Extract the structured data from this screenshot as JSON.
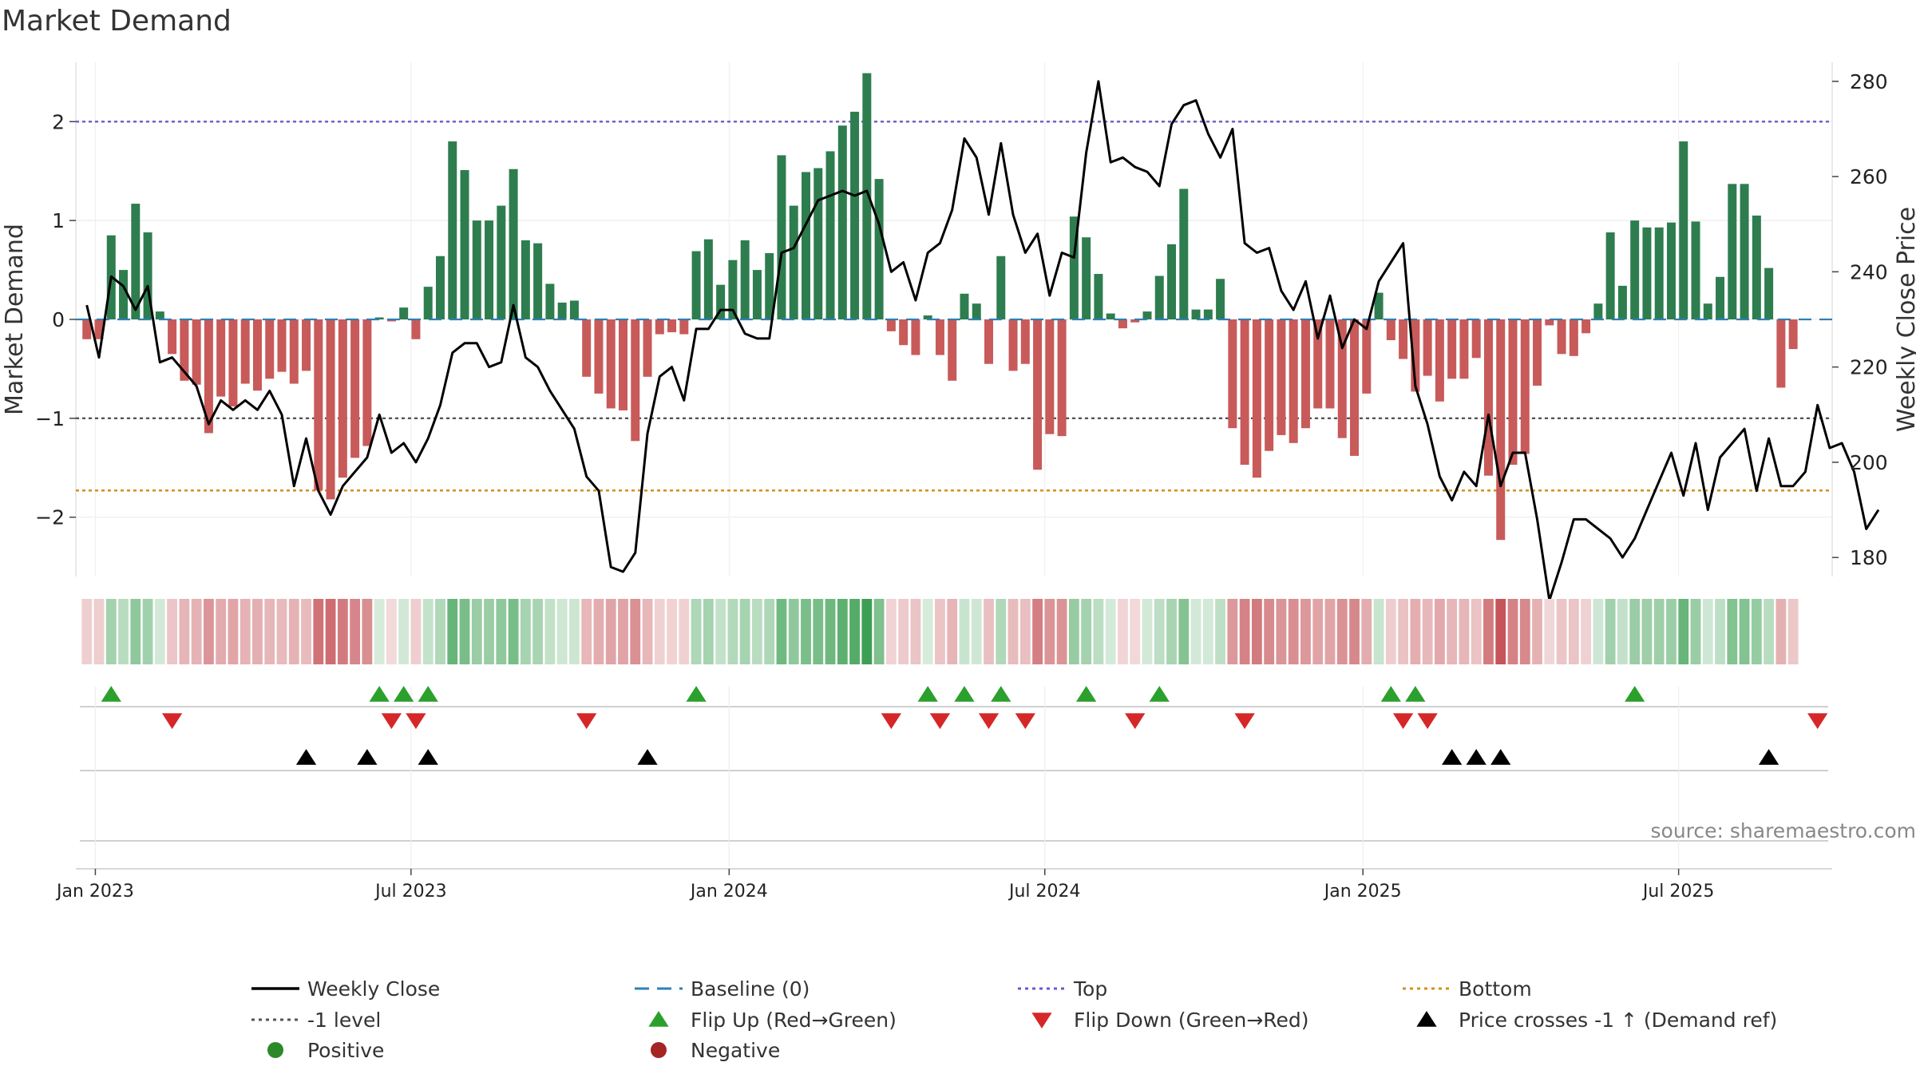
{
  "chart_data": {
    "type": "bar",
    "title": "Market Demand",
    "ylabel": "Market Demand",
    "y2label": "Weekly Close Price",
    "ylim": [
      -2.6,
      2.6
    ],
    "y2lim": [
      176,
      284
    ],
    "yticks": [
      -2,
      -1,
      0,
      1,
      2
    ],
    "y2ticks": [
      180,
      200,
      220,
      240,
      260,
      280
    ],
    "ytick_labels": [
      "−2",
      "−1",
      "0",
      "1",
      "2"
    ],
    "x_labels": [
      {
        "label": "Jan 2023",
        "week": 0.7
      },
      {
        "label": "Jul 2023",
        "week": 26.6
      },
      {
        "label": "Jan 2024",
        "week": 52.7
      },
      {
        "label": "Jul 2024",
        "week": 78.6
      },
      {
        "label": "Jan 2025",
        "week": 104.7
      },
      {
        "label": "Jul 2025",
        "week": 130.6
      }
    ],
    "week_range": [
      -0.9,
      143.2
    ],
    "ref_lines": {
      "top": 2.0,
      "minus_one": -1.0,
      "bottom": -1.73,
      "baseline": 0
    },
    "demand": [
      -0.2,
      -0.2,
      0.85,
      0.5,
      1.17,
      0.88,
      0.08,
      -0.35,
      -0.62,
      -0.66,
      -1.15,
      -0.78,
      -0.88,
      -0.65,
      -0.72,
      -0.6,
      -0.53,
      -0.65,
      -0.52,
      -1.73,
      -1.82,
      -1.6,
      -1.4,
      -1.28,
      0.02,
      -0.02,
      0.12,
      -0.2,
      0.33,
      0.64,
      1.8,
      1.51,
      1.0,
      1.0,
      1.15,
      1.52,
      0.8,
      0.77,
      0.36,
      0.17,
      0.19,
      -0.58,
      -0.75,
      -0.9,
      -0.92,
      -1.23,
      -0.58,
      -0.15,
      -0.13,
      -0.15,
      0.69,
      0.81,
      0.35,
      0.6,
      0.8,
      0.5,
      0.67,
      1.66,
      1.15,
      1.49,
      1.53,
      1.7,
      1.96,
      2.1,
      2.49,
      1.42,
      -0.12,
      -0.26,
      -0.36,
      0.04,
      -0.36,
      -0.62,
      0.26,
      0.16,
      -0.45,
      0.64,
      -0.52,
      -0.45,
      -1.52,
      -1.16,
      -1.18,
      1.04,
      0.83,
      0.46,
      0.06,
      -0.09,
      -0.03,
      0.08,
      0.44,
      0.76,
      1.32,
      0.1,
      0.1,
      0.41,
      -1.1,
      -1.47,
      -1.6,
      -1.33,
      -1.17,
      -1.25,
      -1.1,
      -0.9,
      -0.9,
      -1.2,
      -1.38,
      -0.75,
      0.27,
      -0.21,
      -0.4,
      -0.73,
      -0.57,
      -0.83,
      -0.6,
      -0.6,
      -0.39,
      -1.58,
      -2.23,
      -1.47,
      -1.36,
      -0.67,
      -0.06,
      -0.35,
      -0.37,
      -0.14,
      0.16,
      0.88,
      0.34,
      1.0,
      0.93,
      0.93,
      0.98,
      1.8,
      0.99,
      0.16,
      0.43,
      1.37,
      1.37,
      1.05,
      0.52,
      -0.69,
      -0.3
    ],
    "close": [
      233,
      222,
      239,
      237,
      232,
      237,
      221,
      222,
      219,
      216,
      208,
      213,
      211,
      213,
      211,
      215,
      210,
      195,
      205,
      194,
      189,
      195,
      198,
      201,
      210,
      202,
      204,
      200,
      205,
      212,
      223,
      225,
      225,
      220,
      221,
      233,
      222,
      220,
      215,
      211,
      207,
      197,
      194,
      178,
      177,
      181,
      206,
      218,
      220,
      213,
      228,
      228,
      232,
      232,
      227,
      226,
      226,
      244,
      245,
      250,
      255,
      256,
      257,
      256,
      257,
      250,
      240,
      242,
      234,
      244,
      246,
      253,
      268,
      264,
      252,
      267,
      252,
      244,
      248,
      235,
      244,
      243,
      265,
      280,
      263,
      264,
      262,
      261,
      258,
      271,
      275,
      276,
      269,
      264,
      270,
      246,
      244,
      245,
      236,
      232,
      238,
      226,
      235,
      224,
      230,
      228,
      238,
      242,
      246,
      216,
      208,
      197,
      192,
      198,
      195,
      210,
      195,
      202,
      202,
      188,
      171,
      179,
      188,
      188,
      186,
      184,
      180,
      184,
      190,
      196,
      202,
      193,
      204,
      190,
      201,
      204,
      207,
      194,
      205,
      195,
      195,
      198,
      212,
      203,
      204,
      198,
      186,
      190
    ],
    "flip_up": [
      2,
      24,
      26,
      28,
      50,
      69,
      72,
      75,
      82,
      88,
      107,
      109,
      127
    ],
    "flip_down": [
      7,
      25,
      27,
      41,
      66,
      70,
      74,
      77,
      86,
      95,
      108,
      110,
      142
    ],
    "price_cross": [
      18,
      23,
      28,
      46,
      112,
      114,
      116,
      138
    ],
    "legend": [
      {
        "label": "Weekly Close",
        "type": "line-solid",
        "color": "#000000"
      },
      {
        "label": "Baseline (0)",
        "type": "line-dashed",
        "color": "#2f7fb8"
      },
      {
        "label": "Top",
        "type": "line-dotted",
        "color": "#6a5acd"
      },
      {
        "label": "Bottom",
        "type": "line-dotted",
        "color": "#d4901a"
      },
      {
        "label": "-1 level",
        "type": "line-dotted",
        "color": "#555555"
      },
      {
        "label": "Flip Up (Red→Green)",
        "type": "tri-up",
        "color": "#2ca02c"
      },
      {
        "label": "Flip Down (Green→Red)",
        "type": "tri-down",
        "color": "#d62728"
      },
      {
        "label": "Price crosses -1 ↑ (Demand ref)",
        "type": "tri-up",
        "color": "#000000"
      },
      {
        "label": "Positive",
        "type": "dot",
        "color": "#2a8a2a"
      },
      {
        "label": "Negative",
        "type": "dot",
        "color": "#a52424"
      }
    ],
    "source": "source: sharemaestro.com"
  },
  "colors": {
    "pos_bar": "#2e7d4f",
    "neg_bar": "#c85a5a",
    "pos_heat": "#3c9f52",
    "neg_heat": "#c0454a",
    "flip_up": "#2ca02c",
    "flip_down": "#d62728",
    "top_line": "#6a5acd",
    "bottom_line": "#d4901a",
    "minus_one_line": "#555555",
    "baseline": "#2f7fb8"
  }
}
